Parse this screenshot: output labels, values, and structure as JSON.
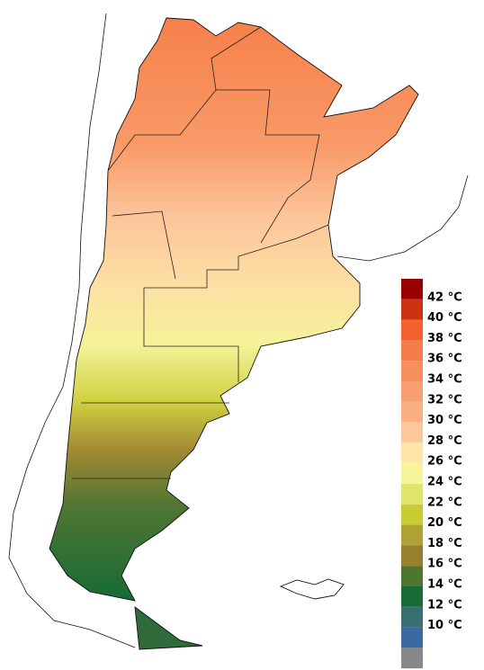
{
  "legend": {
    "labels": [
      "42 °C",
      "40 °C",
      "38 °C",
      "36 °C",
      "34 °C",
      "32 °C",
      "30 °C",
      "28 °C",
      "26 °C",
      "24 °C",
      "22 °C",
      "20 °C",
      "18 °C",
      "16 °C",
      "14 °C",
      "12 °C",
      "10 °C"
    ],
    "colors": [
      "#9b0000",
      "#cc3311",
      "#f4622e",
      "#f67c4c",
      "#f88f5e",
      "#fa9f70",
      "#fbb084",
      "#fcc89c",
      "#fde6a6",
      "#f6f59a",
      "#dfe46a",
      "#c9cc33",
      "#b0a232",
      "#97802f",
      "#4f7533",
      "#166b36",
      "#3b6e70",
      "#3a6aa0",
      "#888888"
    ]
  }
}
